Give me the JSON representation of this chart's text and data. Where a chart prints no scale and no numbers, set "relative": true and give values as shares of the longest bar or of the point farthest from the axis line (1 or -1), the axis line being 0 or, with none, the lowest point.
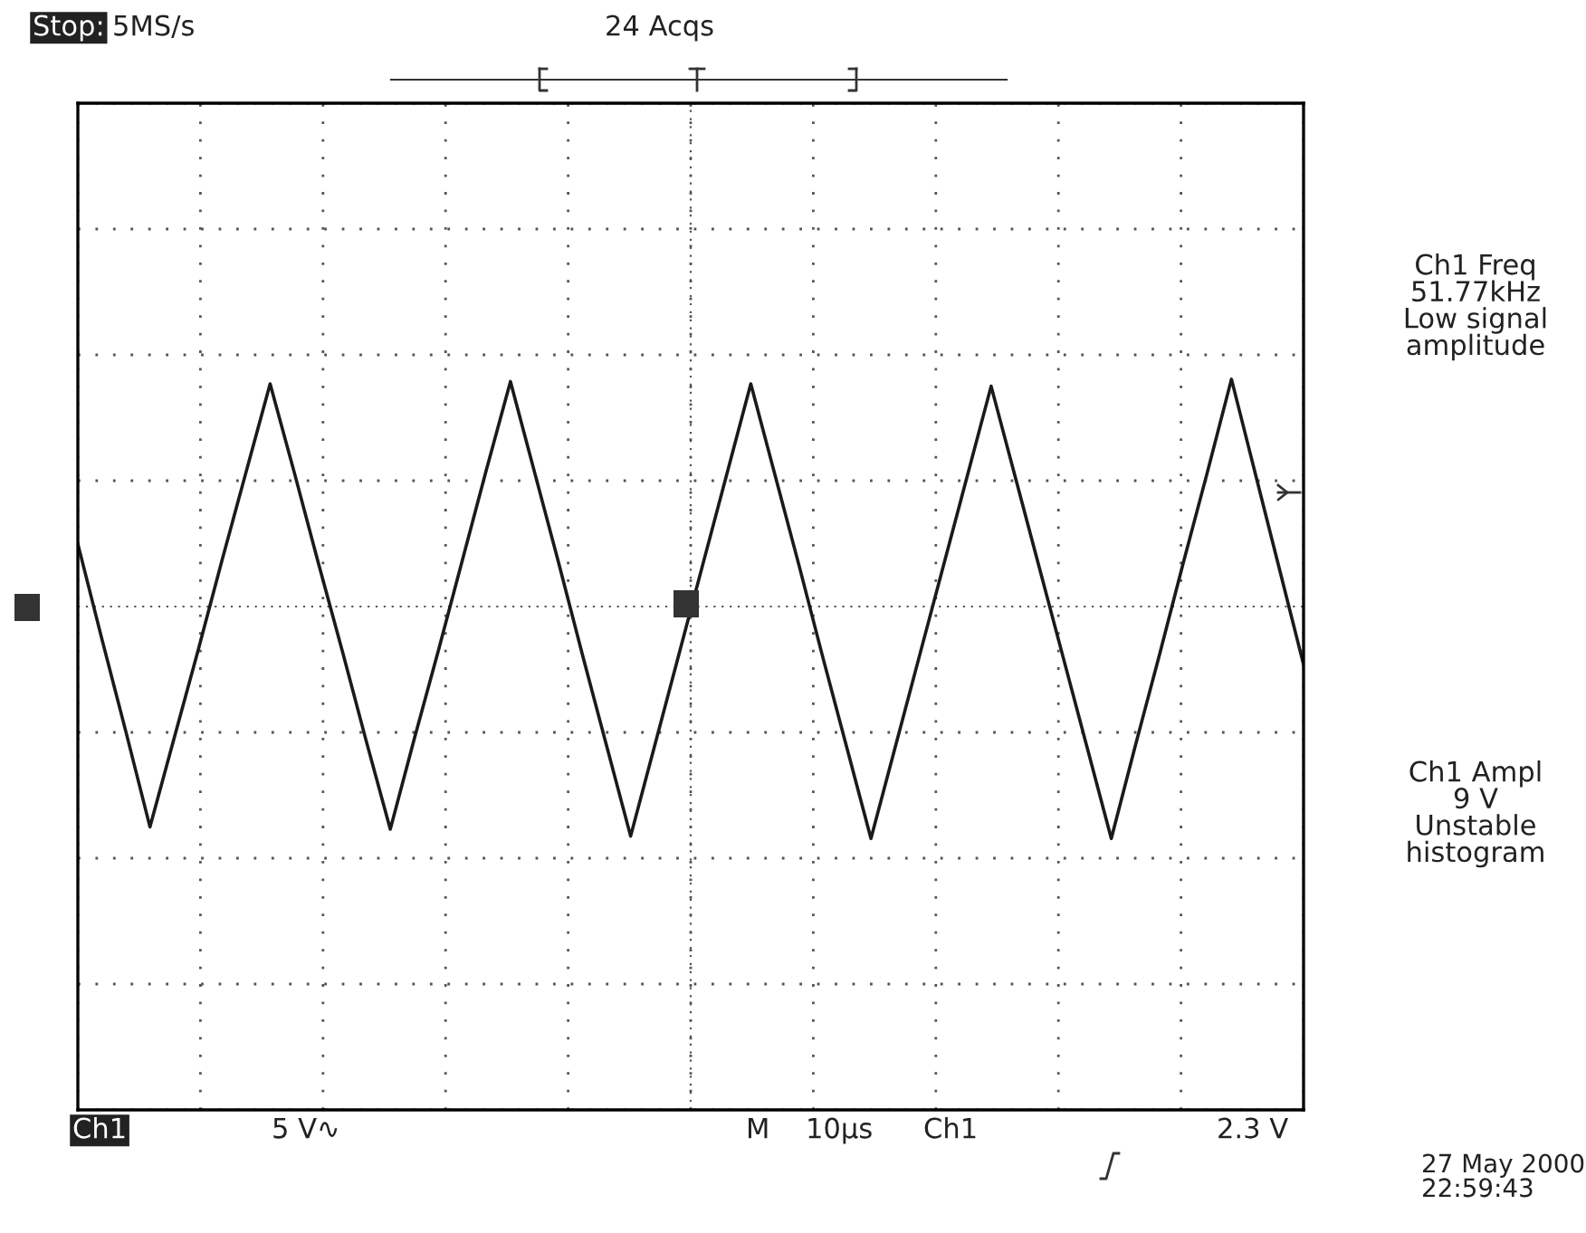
{
  "chart_data": {
    "type": "line",
    "relative": true,
    "categories": [
      null,
      null,
      null,
      null,
      null,
      null,
      null,
      null,
      null,
      null,
      null,
      null,
      null,
      null,
      null,
      null,
      null,
      null,
      null,
      null,
      null,
      null,
      null,
      null,
      null,
      null,
      null,
      null,
      null,
      null,
      null,
      null,
      null,
      null,
      null,
      null,
      null,
      null,
      null,
      null,
      null,
      null,
      null,
      null,
      null,
      null,
      null,
      null,
      null,
      null,
      null,
      null
    ],
    "series": [
      {
        "color": "#1a1a1a",
        "values": [
          0.27,
          -0.14,
          -0.54,
          -0.95,
          -0.57,
          -0.19,
          0.2,
          0.58,
          0.96,
          0.58,
          0.19,
          -0.19,
          -0.58,
          -0.96,
          -0.57,
          -0.19,
          0.2,
          0.59,
          0.97,
          0.58,
          0.19,
          -0.21,
          -0.6,
          -0.99,
          -0.6,
          -0.21,
          0.18,
          0.57,
          0.96,
          0.57,
          0.18,
          -0.22,
          -0.61,
          -1,
          -0.61,
          -0.22,
          0.17,
          0.56,
          0.95,
          0.56,
          0.17,
          -0.22,
          -0.61,
          -1,
          -0.6,
          -0.21,
          0.19,
          0.58,
          0.98,
          0.57,
          0.16,
          -0.25
        ]
      }
    ],
    "ref_lines": [
      {
        "axis": "y",
        "value": 0,
        "color": "#555555",
        "line_style": "dotted"
      }
    ],
    "grid": true,
    "tick_labels": false,
    "marker": "none",
    "line_style": "solid",
    "annotations": [
      "Stop:",
      "5MS/s",
      "24 Acqs",
      "Ch1 Freq\n51.77kHz\nLow signal\namplitude",
      "Ch1 Ampl\n9 V\nUnstable\nhistogram",
      "Ch1",
      "5 V∿",
      "M",
      "10µs",
      "Ch1",
      "2.3 V",
      "27 May 2000\n22:59:43"
    ]
  }
}
